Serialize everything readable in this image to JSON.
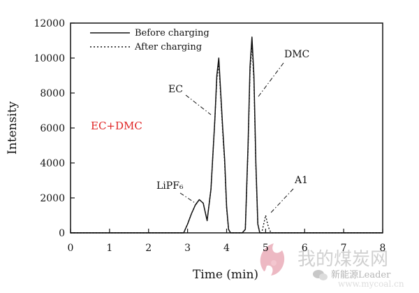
{
  "chart_data": {
    "type": "line",
    "title": "",
    "xlabel": "Time (min)",
    "ylabel": "Intensity",
    "xlim": [
      0,
      8
    ],
    "ylim": [
      0,
      12000
    ],
    "x_ticks": [
      "0",
      "1",
      "2",
      "3",
      "4",
      "5",
      "6",
      "7",
      "8"
    ],
    "y_ticks": [
      "0",
      "2000",
      "4000",
      "6000",
      "8000",
      "10000",
      "12000"
    ],
    "grid": false,
    "legend_position": "top-left",
    "series": [
      {
        "name": "Before charging",
        "style": "solid",
        "color": "#111111",
        "x": [
          0,
          2.9,
          3.0,
          3.1,
          3.2,
          3.3,
          3.4,
          3.5,
          3.6,
          3.7,
          3.75,
          3.8,
          3.85,
          3.9,
          3.95,
          4.0,
          4.05,
          4.1,
          4.4,
          4.48,
          4.55,
          4.6,
          4.65,
          4.7,
          4.75,
          4.8,
          4.85,
          4.9,
          8.0
        ],
        "y": [
          0,
          0,
          500,
          1100,
          1600,
          1900,
          1700,
          700,
          2500,
          6500,
          9000,
          10000,
          8000,
          6000,
          4200,
          1500,
          200,
          0,
          0,
          200,
          5000,
          9500,
          11200,
          9000,
          4000,
          500,
          0,
          0,
          0
        ]
      },
      {
        "name": "After charging",
        "style": "dotted",
        "color": "#111111",
        "x": [
          0,
          2.9,
          3.0,
          3.1,
          3.2,
          3.3,
          3.4,
          3.5,
          3.6,
          3.7,
          3.75,
          3.8,
          3.85,
          3.9,
          3.95,
          4.0,
          4.05,
          4.1,
          4.4,
          4.48,
          4.55,
          4.6,
          4.65,
          4.7,
          4.75,
          4.8,
          4.85,
          4.9,
          4.95,
          5.0,
          5.05,
          5.1,
          5.15,
          8.0
        ],
        "y": [
          0,
          0,
          500,
          1100,
          1600,
          1900,
          1700,
          700,
          2500,
          6500,
          8800,
          9700,
          7800,
          5800,
          4000,
          1400,
          200,
          0,
          0,
          200,
          4800,
          9200,
          10800,
          8700,
          3800,
          500,
          0,
          0,
          500,
          1000,
          500,
          150,
          0,
          0
        ]
      }
    ],
    "annotations": [
      {
        "text": "LiPF₆",
        "x": 3.35,
        "y": 1900
      },
      {
        "text": "EC",
        "x": 3.8,
        "y": 7000
      },
      {
        "text": "DMC",
        "x": 4.65,
        "y": 8000
      },
      {
        "text": "A1",
        "x": 5.0,
        "y": 1000
      }
    ],
    "overlay_label": {
      "text": "EC+DMC",
      "color": "#e02424"
    }
  },
  "watermark": {
    "text": "我的煤炭网",
    "subtext": "www.mycoal.cn",
    "badge": "新能源Leader"
  }
}
